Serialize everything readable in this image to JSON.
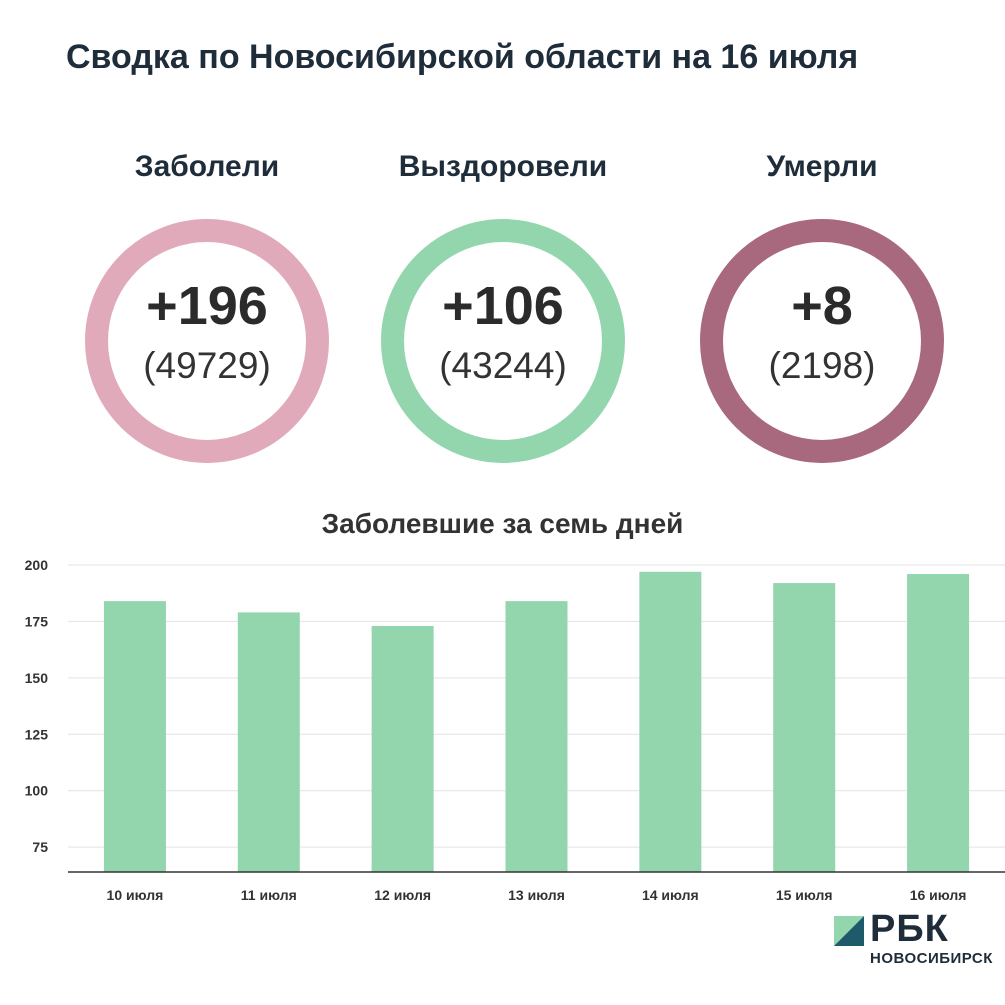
{
  "header": {
    "title": "Сводка по Новосибирской области на 16 июля"
  },
  "stats": [
    {
      "label": "Заболели",
      "delta": "+196",
      "total": "(49729)",
      "color": "#e0aabb"
    },
    {
      "label": "Выздоровели",
      "delta": "+106",
      "total": "(43244)",
      "color": "#93d6ae"
    },
    {
      "label": "Умерли",
      "delta": "+8",
      "total": "(2198)",
      "color": "#a8697f"
    }
  ],
  "chart_data": {
    "type": "bar",
    "title": "Заболевшие за семь дней",
    "categories": [
      "10 июля",
      "11 июля",
      "12 июля",
      "13 июля",
      "14 июля",
      "15 июля",
      "16 июля"
    ],
    "values": [
      184,
      179,
      173,
      184,
      197,
      192,
      196
    ],
    "yticks": [
      75,
      100,
      125,
      150,
      175,
      200
    ],
    "ylim": [
      64,
      200
    ],
    "grid": true,
    "bar_color": "#93d6ae"
  },
  "logo": {
    "text": "РБК",
    "subtext": "НОВОСИБИРСК"
  }
}
